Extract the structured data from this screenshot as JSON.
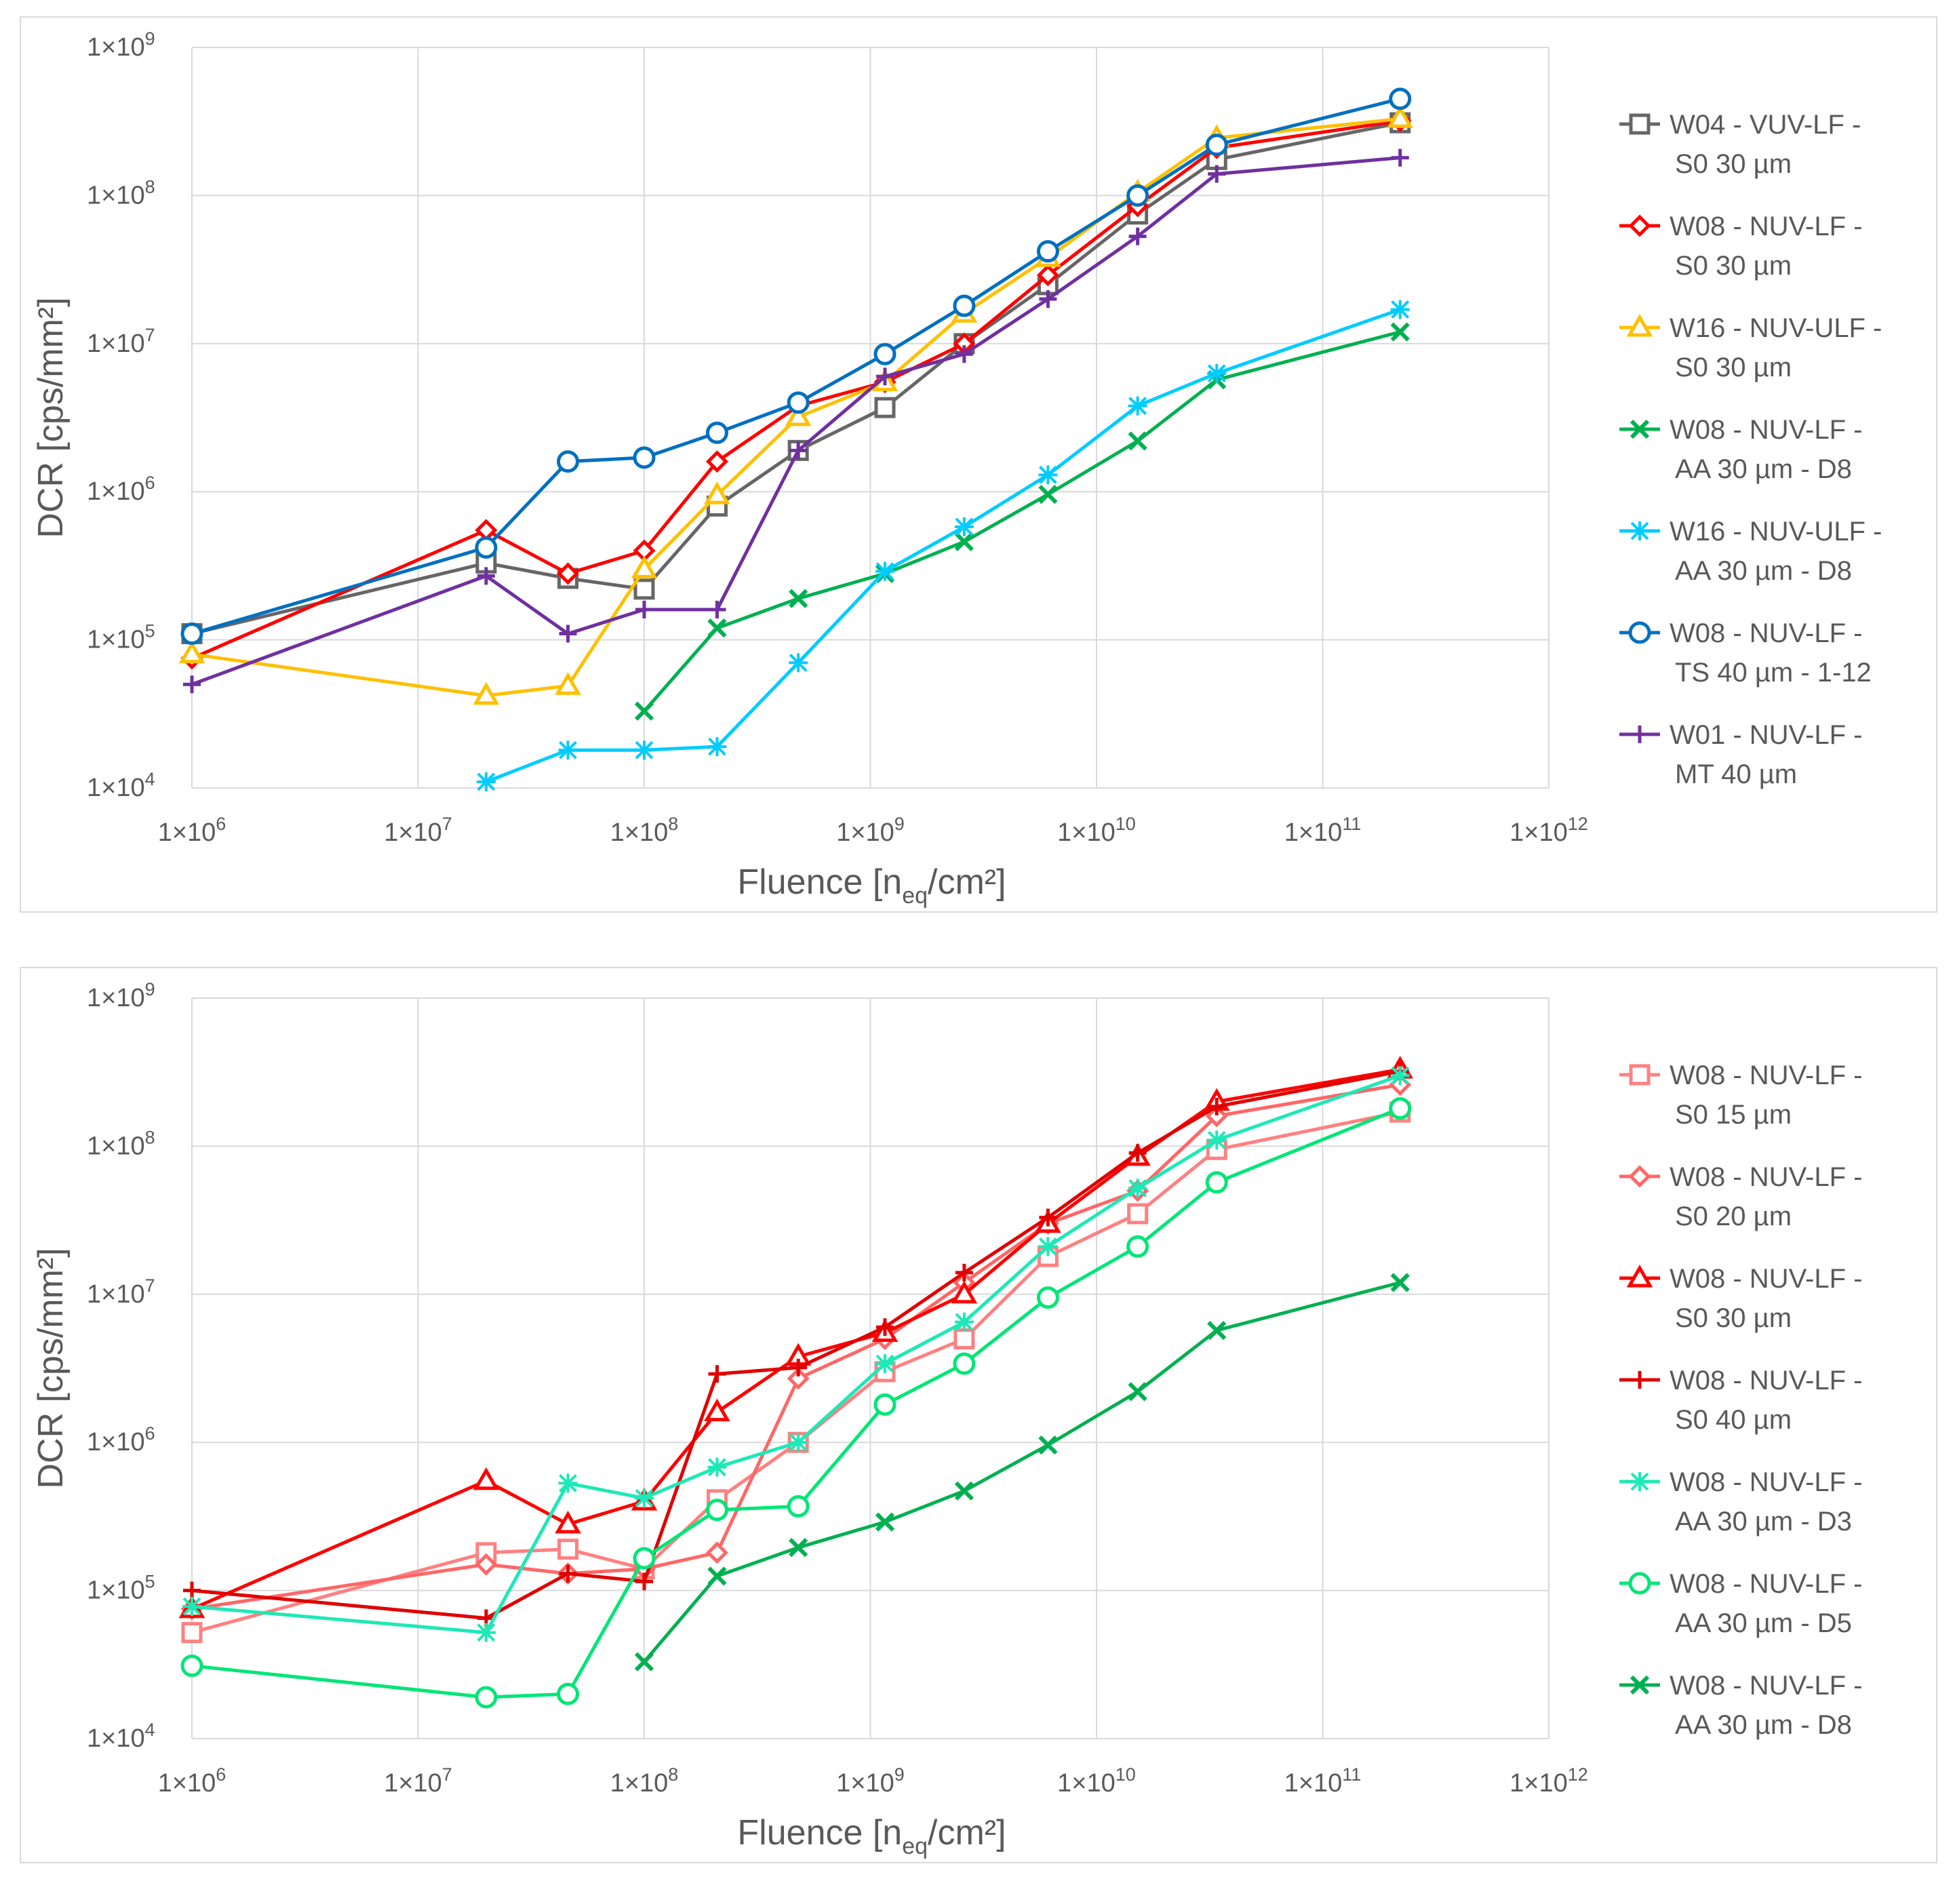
{
  "chart_data": [
    {
      "type": "line",
      "xscale": "log",
      "yscale": "log",
      "xlim": [
        1000000,
        1000000000000
      ],
      "ylim": [
        10000,
        1000000000
      ],
      "xlabel": "Fluence [n",
      "xlabel_sub": "eq",
      "xlabel_end": "/cm²]",
      "ylabel": "DCR [cps/mm²]",
      "x_ticks": [
        "1×10^6",
        "1×10^7",
        "1×10^8",
        "1×10^9",
        "1×10^10",
        "1×10^11",
        "1×10^12"
      ],
      "y_ticks": [
        "1×10^4",
        "1×10^5",
        "1×10^6",
        "1×10^7",
        "1×10^8",
        "1×10^9"
      ],
      "grid": true,
      "legend_position": "right",
      "series": [
        {
          "name_line1": "W04 - VUV-LF -",
          "name_line2": "S0 30 µm",
          "color": "#666666",
          "marker": "square",
          "x": [
            1000000.0,
            20000000.0,
            46000000.0,
            100000000.0,
            210000000.0,
            480000000.0,
            1160000000.0,
            2600000000.0,
            6100000000.0,
            15200000000.0,
            34000000000.0,
            220000000000.0
          ],
          "y": [
            110000,
            330000,
            260000,
            220000,
            800000,
            1900000,
            3700000,
            10000000,
            25000000,
            75000000,
            175000000,
            310000000
          ]
        },
        {
          "name_line1": "W08 - NUV-LF -",
          "name_line2": "S0 30 µm",
          "color": "#ff0000",
          "marker": "diamond",
          "x": [
            1000000.0,
            20000000.0,
            46000000.0,
            100000000.0,
            210000000.0,
            480000000.0,
            1160000000.0,
            2600000000.0,
            6100000000.0,
            15200000000.0,
            34000000000.0,
            220000000000.0
          ],
          "y": [
            75000,
            550000,
            280000,
            400000,
            1600000,
            3800000,
            5500000,
            10000000,
            29000000,
            85000000,
            210000000,
            320000000
          ]
        },
        {
          "name_line1": "W16 - NUV-ULF -",
          "name_line2": "S0 30 µm",
          "color": "#ffc000",
          "marker": "triangle",
          "x": [
            1000000.0,
            20000000.0,
            46000000.0,
            100000000.0,
            210000000.0,
            480000000.0,
            1160000000.0,
            2600000000.0,
            6100000000.0,
            15200000000.0,
            34000000000.0,
            220000000000.0
          ],
          "y": [
            80000,
            42000,
            49000,
            300000,
            950000,
            3200000,
            5500000,
            16000000,
            38000000,
            105000000,
            245000000,
            330000000
          ]
        },
        {
          "name_line1": "W08 - NUV-LF -",
          "name_line2": "AA 30 µm - D8",
          "color": "#00b050",
          "marker": "x",
          "x": [
            100000000.0,
            210000000.0,
            480000000.0,
            1160000000.0,
            2600000000.0,
            6100000000.0,
            15200000000.0,
            34000000000.0,
            220000000000.0
          ],
          "y": [
            33000,
            120000,
            190000,
            280000,
            460000,
            960000,
            2200000,
            5700000,
            12000000
          ]
        },
        {
          "name_line1": "W16 - NUV-ULF -",
          "name_line2": "AA 30 µm - D8",
          "color": "#00ccff",
          "marker": "asterisk",
          "x": [
            20000000.0,
            46000000.0,
            100000000.0,
            210000000.0,
            480000000.0,
            1160000000.0,
            2600000000.0,
            6100000000.0,
            15200000000.0,
            34000000000.0,
            220000000000.0
          ],
          "y": [
            11000,
            18000,
            18000,
            19000,
            70000,
            290000,
            580000,
            1300000,
            3800000,
            6300000,
            17000000
          ]
        },
        {
          "name_line1": "W08 - NUV-LF -",
          "name_line2": "TS 40 µm - 1-12",
          "color": "#0070c0",
          "marker": "circle",
          "x": [
            1000000.0,
            20000000.0,
            46000000.0,
            100000000.0,
            210000000.0,
            480000000.0,
            1160000000.0,
            2600000000.0,
            6100000000.0,
            15200000000.0,
            34000000000.0,
            220000000000.0
          ],
          "y": [
            110000,
            420000,
            1600000,
            1700000,
            2500000,
            4000000,
            8500000,
            18000000,
            42000000,
            100000000,
            220000000,
            450000000
          ]
        },
        {
          "name_line1": "W01 - NUV-LF -",
          "name_line2": "MT 40 µm",
          "color": "#7030a0",
          "marker": "plus",
          "x": [
            1000000.0,
            20000000.0,
            46000000.0,
            100000000.0,
            210000000.0,
            480000000.0,
            1160000000.0,
            2600000000.0,
            6100000000.0,
            15200000000.0,
            34000000000.0,
            220000000000.0
          ],
          "y": [
            50000,
            270000,
            110000,
            160000,
            160000,
            1900000,
            6000000,
            8500000,
            20000000,
            53000000,
            140000000,
            180000000
          ]
        }
      ]
    },
    {
      "type": "line",
      "xscale": "log",
      "yscale": "log",
      "xlim": [
        1000000,
        1000000000000
      ],
      "ylim": [
        10000,
        1000000000
      ],
      "xlabel": "Fluence [n",
      "xlabel_sub": "eq",
      "xlabel_end": "/cm²]",
      "ylabel": "DCR [cps/mm²]",
      "x_ticks": [
        "1×10^6",
        "1×10^7",
        "1×10^8",
        "1×10^9",
        "1×10^10",
        "1×10^11",
        "1×10^12"
      ],
      "y_ticks": [
        "1×10^4",
        "1×10^5",
        "1×10^6",
        "1×10^7",
        "1×10^8",
        "1×10^9"
      ],
      "grid": true,
      "legend_position": "right",
      "series": [
        {
          "name_line1": "W08 - NUV-LF -",
          "name_line2": "S0 15 µm",
          "color": "#ff8080",
          "marker": "square",
          "x": [
            1000000.0,
            20000000.0,
            46000000.0,
            100000000.0,
            210000000.0,
            480000000.0,
            1160000000.0,
            2600000000.0,
            6100000000.0,
            15200000000.0,
            34000000000.0,
            220000000000.0
          ],
          "y": [
            52000,
            180000,
            190000,
            140000,
            410000,
            1000000,
            3000000,
            5000000,
            18000000,
            35000000,
            95000000,
            170000000
          ]
        },
        {
          "name_line1": "W08 - NUV-LF -",
          "name_line2": "S0 20 µm",
          "color": "#ff6666",
          "marker": "diamond",
          "x": [
            1000000.0,
            20000000.0,
            46000000.0,
            100000000.0,
            210000000.0,
            480000000.0,
            1160000000.0,
            2600000000.0,
            6100000000.0,
            15200000000.0,
            34000000000.0,
            220000000000.0
          ],
          "y": [
            75000,
            150000,
            130000,
            140000,
            180000,
            2700000,
            5000000,
            12000000,
            30000000,
            50000000,
            160000000,
            260000000
          ]
        },
        {
          "name_line1": "W08 - NUV-LF -",
          "name_line2": "S0 30 µm",
          "color": "#ff0000",
          "marker": "triangle",
          "x": [
            1000000.0,
            20000000.0,
            46000000.0,
            100000000.0,
            210000000.0,
            480000000.0,
            1160000000.0,
            2600000000.0,
            6100000000.0,
            15200000000.0,
            34000000000.0,
            220000000000.0
          ],
          "y": [
            75000,
            550000,
            280000,
            400000,
            1600000,
            3800000,
            5500000,
            10000000,
            30000000,
            85000000,
            200000000,
            330000000
          ]
        },
        {
          "name_line1": "W08 - NUV-LF -",
          "name_line2": "S0 40 µm",
          "color": "#e00000",
          "marker": "plus",
          "x": [
            1000000.0,
            20000000.0,
            46000000.0,
            100000000.0,
            210000000.0,
            480000000.0,
            1160000000.0,
            2600000000.0,
            6100000000.0,
            15200000000.0,
            34000000000.0,
            220000000000.0
          ],
          "y": [
            100000,
            65000,
            130000,
            115000,
            2900000,
            3200000,
            6000000,
            14000000,
            33000000,
            90000000,
            185000000,
            320000000
          ]
        },
        {
          "name_line1": "W08 - NUV-LF -",
          "name_line2": "AA 30 µm - D3",
          "color": "#1de9b6",
          "marker": "asterisk",
          "x": [
            1000000.0,
            20000000.0,
            46000000.0,
            100000000.0,
            210000000.0,
            480000000.0,
            1160000000.0,
            2600000000.0,
            6100000000.0,
            15200000000.0,
            34000000000.0,
            220000000000.0
          ],
          "y": [
            78000,
            52000,
            530000,
            420000,
            680000,
            1000000,
            3400000,
            6500000,
            21000000,
            52000000,
            110000000,
            300000000
          ]
        },
        {
          "name_line1": "W08 - NUV-LF -",
          "name_line2": "AA 30 µm - D5",
          "color": "#00e676",
          "marker": "circle",
          "x": [
            1000000.0,
            20000000.0,
            46000000.0,
            100000000.0,
            210000000.0,
            480000000.0,
            1160000000.0,
            2600000000.0,
            6100000000.0,
            15200000000.0,
            34000000000.0,
            220000000000.0
          ],
          "y": [
            31000,
            19000,
            20000,
            165000,
            350000,
            370000,
            1800000,
            3400000,
            9500000,
            21000000,
            57000000,
            180000000
          ]
        },
        {
          "name_line1": "W08 - NUV-LF -",
          "name_line2": "AA 30 µm - D8",
          "color": "#00b050",
          "marker": "x",
          "x": [
            100000000.0,
            210000000.0,
            480000000.0,
            1160000000.0,
            2600000000.0,
            6100000000.0,
            15200000000.0,
            34000000000.0,
            220000000000.0
          ],
          "y": [
            33000,
            125000,
            195000,
            290000,
            470000,
            960000,
            2200000,
            5700000,
            12000000
          ]
        }
      ]
    }
  ]
}
